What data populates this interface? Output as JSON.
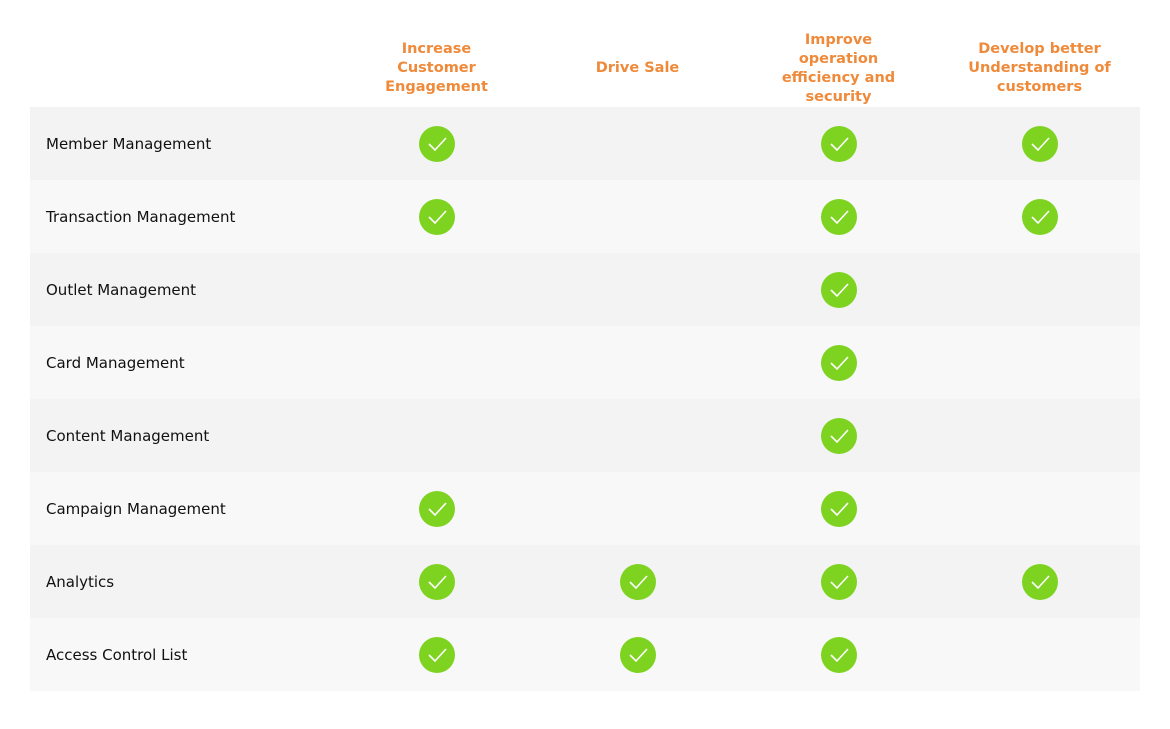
{
  "table": {
    "columns": [
      "Increase Customer Engagement",
      "Drive Sale",
      "Improve operation efficiency and security",
      "Develop better Understanding of customers"
    ],
    "rows": [
      {
        "label": "Member Management",
        "checks": [
          true,
          false,
          true,
          true
        ]
      },
      {
        "label": "Transaction Management",
        "checks": [
          true,
          false,
          true,
          true
        ]
      },
      {
        "label": "Outlet Management",
        "checks": [
          false,
          false,
          true,
          false
        ]
      },
      {
        "label": "Card Management",
        "checks": [
          false,
          false,
          true,
          false
        ]
      },
      {
        "label": "Content Management",
        "checks": [
          false,
          false,
          true,
          false
        ]
      },
      {
        "label": "Campaign Management",
        "checks": [
          true,
          false,
          true,
          false
        ]
      },
      {
        "label": "Analytics",
        "checks": [
          true,
          true,
          true,
          true
        ]
      },
      {
        "label": "Access Control List",
        "checks": [
          true,
          true,
          true,
          false
        ]
      }
    ]
  }
}
